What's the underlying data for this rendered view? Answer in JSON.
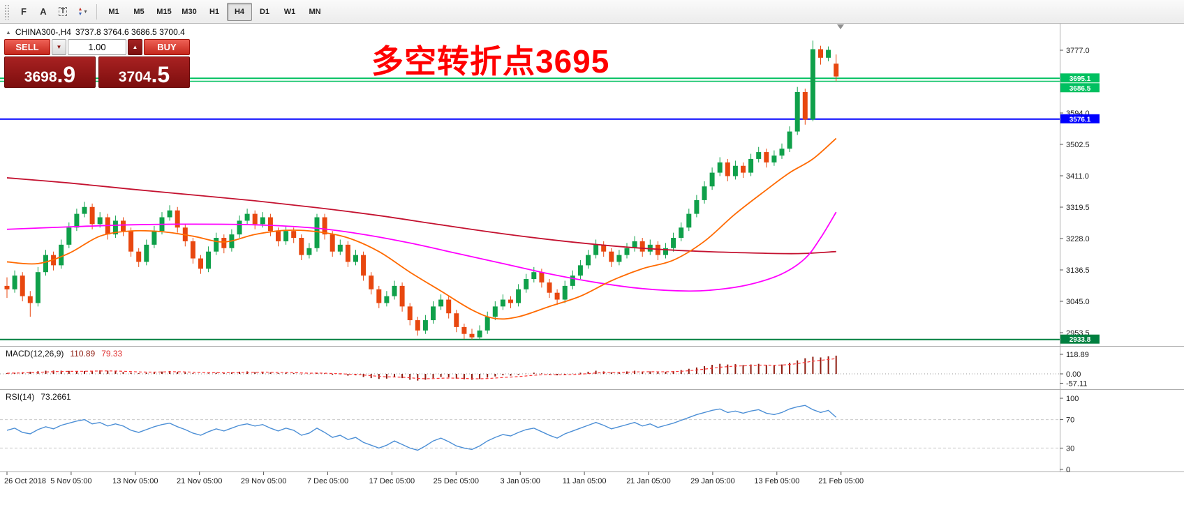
{
  "toolbar": {
    "tools": [
      {
        "name": "fibonacci",
        "glyph": "F"
      },
      {
        "name": "text",
        "glyph": "A"
      },
      {
        "name": "label",
        "glyph": "T"
      },
      {
        "name": "arrows",
        "glyph_up": "▲",
        "glyph_down": "▼",
        "caret": "▾"
      }
    ],
    "timeframes": [
      "M1",
      "M5",
      "M15",
      "M30",
      "H1",
      "H4",
      "D1",
      "W1",
      "MN"
    ],
    "active_timeframe": "H4"
  },
  "chart": {
    "window_icon": "▲",
    "symbol_period": "CHINA300-,H4",
    "ohlc_text": "3737.8 3764.6 3686.5 3700.4",
    "annotation": "多空转折点3695"
  },
  "trade": {
    "sell_label": "SELL",
    "buy_label": "BUY",
    "volume": "1.00",
    "bid": "3698.9",
    "ask": "3704.5",
    "bid_main": "3698",
    "bid_pip": ".9",
    "ask_main": "3704",
    "ask_pip": ".5",
    "caret_down": "▼",
    "caret_up": "▲"
  },
  "chart_data": {
    "type": "candlestick",
    "symbol": "CHINA300-",
    "period": "H4",
    "colors": {
      "up": "#0FA04A",
      "down": "#E8470F",
      "background": "#FFFFFF"
    },
    "price_axis": {
      "ticks": [
        3777.0,
        3594.0,
        3502.5,
        3411.0,
        3319.5,
        3228.0,
        3136.5,
        3045.0,
        2953.5
      ]
    },
    "hlines": [
      {
        "price": 3695.1,
        "label": "3695.1",
        "color": "#00C060",
        "width": 2
      },
      {
        "price": 3686.5,
        "label": "3686.5",
        "color": "#00C060",
        "width": 1.5
      },
      {
        "price": 3576.1,
        "label": "3576.1",
        "color": "#0000FF",
        "width": 2
      },
      {
        "price": 2933.8,
        "label": "2933.8",
        "color": "#008040",
        "width": 2
      }
    ],
    "candles": [
      [
        3090,
        3115,
        3055,
        3080
      ],
      [
        3080,
        3135,
        3070,
        3120
      ],
      [
        3120,
        3130,
        3045,
        3060
      ],
      [
        3060,
        3075,
        3000,
        3040
      ],
      [
        3040,
        3145,
        3030,
        3130
      ],
      [
        3130,
        3195,
        3120,
        3180
      ],
      [
        3180,
        3190,
        3135,
        3150
      ],
      [
        3150,
        3225,
        3140,
        3210
      ],
      [
        3210,
        3275,
        3200,
        3260
      ],
      [
        3260,
        3315,
        3250,
        3300
      ],
      [
        3300,
        3335,
        3290,
        3320
      ],
      [
        3320,
        3330,
        3255,
        3270
      ],
      [
        3270,
        3305,
        3260,
        3290
      ],
      [
        3290,
        3300,
        3225,
        3240
      ],
      [
        3240,
        3295,
        3230,
        3280
      ],
      [
        3280,
        3290,
        3235,
        3250
      ],
      [
        3250,
        3260,
        3175,
        3190
      ],
      [
        3190,
        3200,
        3145,
        3160
      ],
      [
        3160,
        3225,
        3150,
        3210
      ],
      [
        3210,
        3265,
        3200,
        3250
      ],
      [
        3250,
        3305,
        3240,
        3290
      ],
      [
        3290,
        3325,
        3280,
        3310
      ],
      [
        3310,
        3320,
        3245,
        3260
      ],
      [
        3260,
        3270,
        3205,
        3220
      ],
      [
        3220,
        3230,
        3155,
        3170
      ],
      [
        3170,
        3180,
        3125,
        3140
      ],
      [
        3140,
        3205,
        3130,
        3190
      ],
      [
        3190,
        3245,
        3180,
        3230
      ],
      [
        3230,
        3240,
        3185,
        3200
      ],
      [
        3200,
        3255,
        3190,
        3240
      ],
      [
        3240,
        3295,
        3230,
        3280
      ],
      [
        3280,
        3315,
        3270,
        3300
      ],
      [
        3300,
        3310,
        3255,
        3270
      ],
      [
        3270,
        3305,
        3260,
        3290
      ],
      [
        3290,
        3300,
        3235,
        3250
      ],
      [
        3250,
        3260,
        3205,
        3220
      ],
      [
        3220,
        3265,
        3210,
        3250
      ],
      [
        3250,
        3260,
        3215,
        3230
      ],
      [
        3230,
        3240,
        3165,
        3180
      ],
      [
        3180,
        3215,
        3170,
        3200
      ],
      [
        3200,
        3300,
        3190,
        3290
      ],
      [
        3290,
        3300,
        3225,
        3240
      ],
      [
        3240,
        3250,
        3175,
        3190
      ],
      [
        3190,
        3225,
        3180,
        3210
      ],
      [
        3210,
        3220,
        3145,
        3160
      ],
      [
        3160,
        3195,
        3150,
        3180
      ],
      [
        3180,
        3190,
        3105,
        3120
      ],
      [
        3120,
        3130,
        3065,
        3080
      ],
      [
        3080,
        3090,
        3025,
        3040
      ],
      [
        3040,
        3075,
        3030,
        3060
      ],
      [
        3060,
        3105,
        3050,
        3090
      ],
      [
        3090,
        3100,
        3015,
        3030
      ],
      [
        3030,
        3040,
        2975,
        2990
      ],
      [
        2990,
        3000,
        2945,
        2960
      ],
      [
        2960,
        3005,
        2950,
        2990
      ],
      [
        2990,
        3045,
        2980,
        3030
      ],
      [
        3030,
        3065,
        3020,
        3050
      ],
      [
        3050,
        3060,
        2995,
        3010
      ],
      [
        3010,
        3020,
        2955,
        2970
      ],
      [
        2970,
        2980,
        2935,
        2950
      ],
      [
        2950,
        2965,
        2933.8,
        2940
      ],
      [
        2940,
        2975,
        2934,
        2960
      ],
      [
        2960,
        3015,
        2950,
        3000
      ],
      [
        3000,
        3045,
        2990,
        3030
      ],
      [
        3030,
        3065,
        3020,
        3050
      ],
      [
        3050,
        3060,
        3025,
        3040
      ],
      [
        3040,
        3095,
        3030,
        3080
      ],
      [
        3080,
        3125,
        3070,
        3110
      ],
      [
        3110,
        3145,
        3100,
        3130
      ],
      [
        3130,
        3140,
        3085,
        3100
      ],
      [
        3100,
        3110,
        3055,
        3070
      ],
      [
        3070,
        3080,
        3035,
        3050
      ],
      [
        3050,
        3105,
        3040,
        3090
      ],
      [
        3090,
        3135,
        3080,
        3120
      ],
      [
        3120,
        3165,
        3110,
        3150
      ],
      [
        3150,
        3195,
        3140,
        3180
      ],
      [
        3180,
        3225,
        3170,
        3210
      ],
      [
        3210,
        3220,
        3175,
        3190
      ],
      [
        3190,
        3200,
        3145,
        3160
      ],
      [
        3160,
        3195,
        3150,
        3180
      ],
      [
        3180,
        3215,
        3170,
        3200
      ],
      [
        3200,
        3235,
        3190,
        3220
      ],
      [
        3220,
        3230,
        3175,
        3190
      ],
      [
        3190,
        3225,
        3180,
        3210
      ],
      [
        3210,
        3220,
        3165,
        3180
      ],
      [
        3180,
        3215,
        3170,
        3200
      ],
      [
        3200,
        3245,
        3190,
        3230
      ],
      [
        3230,
        3275,
        3220,
        3260
      ],
      [
        3260,
        3315,
        3250,
        3300
      ],
      [
        3300,
        3355,
        3290,
        3340
      ],
      [
        3340,
        3395,
        3330,
        3380
      ],
      [
        3380,
        3435,
        3370,
        3420
      ],
      [
        3420,
        3465,
        3410,
        3450
      ],
      [
        3450,
        3460,
        3395,
        3410
      ],
      [
        3410,
        3455,
        3400,
        3440
      ],
      [
        3440,
        3450,
        3405,
        3420
      ],
      [
        3420,
        3475,
        3410,
        3460
      ],
      [
        3460,
        3495,
        3450,
        3480
      ],
      [
        3480,
        3490,
        3435,
        3450
      ],
      [
        3450,
        3485,
        3440,
        3470
      ],
      [
        3470,
        3505,
        3460,
        3490
      ],
      [
        3490,
        3555,
        3480,
        3540
      ],
      [
        3540,
        3670,
        3530,
        3655
      ],
      [
        3655,
        3665,
        3560,
        3575
      ],
      [
        3575,
        3805,
        3570,
        3780
      ],
      [
        3780,
        3790,
        3735,
        3755
      ],
      [
        3755,
        3788,
        3745,
        3778
      ],
      [
        3737.8,
        3764.6,
        3686.5,
        3700.4
      ]
    ],
    "moving_averages": [
      {
        "name": "slow",
        "color": "#C41230",
        "points": [
          [
            0,
            3405
          ],
          [
            8,
            3390
          ],
          [
            16,
            3372
          ],
          [
            24,
            3355
          ],
          [
            32,
            3338
          ],
          [
            40,
            3318
          ],
          [
            48,
            3295
          ],
          [
            56,
            3268
          ],
          [
            64,
            3242
          ],
          [
            72,
            3220
          ],
          [
            80,
            3203
          ],
          [
            88,
            3192
          ],
          [
            96,
            3186
          ],
          [
            102,
            3184
          ],
          [
            107,
            3190
          ]
        ]
      },
      {
        "name": "medium",
        "color": "#FF00FF",
        "points": [
          [
            0,
            3255
          ],
          [
            8,
            3262
          ],
          [
            16,
            3268
          ],
          [
            24,
            3270
          ],
          [
            32,
            3268
          ],
          [
            40,
            3258
          ],
          [
            46,
            3240
          ],
          [
            52,
            3215
          ],
          [
            58,
            3185
          ],
          [
            64,
            3155
          ],
          [
            70,
            3125
          ],
          [
            76,
            3100
          ],
          [
            82,
            3082
          ],
          [
            88,
            3075
          ],
          [
            92,
            3080
          ],
          [
            96,
            3095
          ],
          [
            100,
            3125
          ],
          [
            103,
            3170
          ],
          [
            105,
            3230
          ],
          [
            107,
            3305
          ]
        ]
      },
      {
        "name": "fast",
        "color": "#FF6A00",
        "points": [
          [
            0,
            3160
          ],
          [
            4,
            3155
          ],
          [
            8,
            3185
          ],
          [
            12,
            3235
          ],
          [
            16,
            3250
          ],
          [
            20,
            3248
          ],
          [
            24,
            3235
          ],
          [
            28,
            3218
          ],
          [
            32,
            3240
          ],
          [
            36,
            3252
          ],
          [
            40,
            3248
          ],
          [
            44,
            3230
          ],
          [
            48,
            3190
          ],
          [
            52,
            3130
          ],
          [
            56,
            3075
          ],
          [
            60,
            3020
          ],
          [
            63,
            2995
          ],
          [
            66,
            3000
          ],
          [
            70,
            3030
          ],
          [
            74,
            3060
          ],
          [
            78,
            3105
          ],
          [
            82,
            3140
          ],
          [
            86,
            3165
          ],
          [
            90,
            3220
          ],
          [
            94,
            3300
          ],
          [
            98,
            3370
          ],
          [
            101,
            3420
          ],
          [
            104,
            3460
          ],
          [
            107,
            3520
          ]
        ]
      }
    ],
    "macd": {
      "label": "MACD(12,26,9)",
      "value_main": "110.89",
      "value_signal": "79.33",
      "color_hist": "#8E1C10",
      "color_signal": "#FF3333",
      "axis": [
        {
          "label": "118.89",
          "value": 118.89
        },
        {
          "label": "0.00",
          "value": 0
        },
        {
          "label": "-57.11",
          "value": -57.11
        }
      ],
      "histogram": [
        4,
        7,
        10,
        13,
        16,
        19,
        20,
        19,
        18,
        16,
        17,
        19,
        21,
        19,
        15,
        11,
        7,
        4,
        7,
        11,
        14,
        17,
        13,
        9,
        4,
        0,
        3,
        7,
        5,
        9,
        13,
        15,
        11,
        13,
        9,
        4,
        7,
        5,
        -3,
        -1,
        7,
        3,
        -6,
        -3,
        -11,
        -9,
        -19,
        -26,
        -31,
        -29,
        -21,
        -26,
        -36,
        -41,
        -36,
        -26,
        -19,
        -21,
        -29,
        -33,
        -36,
        -31,
        -23,
        -16,
        -9,
        -11,
        -6,
        1,
        7,
        3,
        -3,
        -9,
        -5,
        1,
        7,
        13,
        19,
        15,
        9,
        11,
        15,
        19,
        14,
        15,
        11,
        13,
        17,
        23,
        31,
        39,
        47,
        55,
        61,
        57,
        59,
        54,
        57,
        61,
        54,
        51,
        57,
        68,
        82,
        95,
        104,
        100,
        107,
        110.89
      ]
    },
    "rsi": {
      "label": "RSI(14)",
      "value_text": "73.2661",
      "color": "#4C8FD6",
      "levels": [
        70,
        30
      ],
      "axis_labels": [
        "100",
        "70",
        "30",
        "0"
      ],
      "axis_values": [
        100,
        70,
        30,
        0
      ],
      "values": [
        55,
        58,
        52,
        50,
        56,
        60,
        57,
        62,
        65,
        68,
        70,
        64,
        66,
        61,
        64,
        61,
        55,
        52,
        56,
        60,
        63,
        65,
        60,
        56,
        51,
        48,
        53,
        57,
        54,
        58,
        62,
        64,
        61,
        63,
        58,
        54,
        58,
        55,
        48,
        51,
        58,
        52,
        45,
        48,
        42,
        45,
        38,
        34,
        30,
        34,
        40,
        35,
        30,
        27,
        33,
        40,
        44,
        39,
        33,
        30,
        28,
        33,
        40,
        45,
        49,
        47,
        52,
        56,
        58,
        53,
        48,
        44,
        50,
        54,
        58,
        62,
        66,
        62,
        57,
        60,
        63,
        66,
        61,
        64,
        59,
        62,
        65,
        69,
        73,
        77,
        80,
        83,
        85,
        80,
        82,
        79,
        82,
        84,
        79,
        77,
        80,
        85,
        88,
        90,
        84,
        80,
        83,
        73.2661
      ]
    },
    "time_labels": [
      "26 Oct 2018",
      "5 Nov 05:00",
      "13 Nov 05:00",
      "21 Nov 05:00",
      "29 Nov 05:00",
      "7 Dec 05:00",
      "17 Dec 05:00",
      "25 Dec 05:00",
      "3 Jan 05:00",
      "11 Jan 05:00",
      "21 Jan 05:00",
      "29 Jan 05:00",
      "13 Feb 05:00",
      "21 Feb 05:00"
    ]
  }
}
